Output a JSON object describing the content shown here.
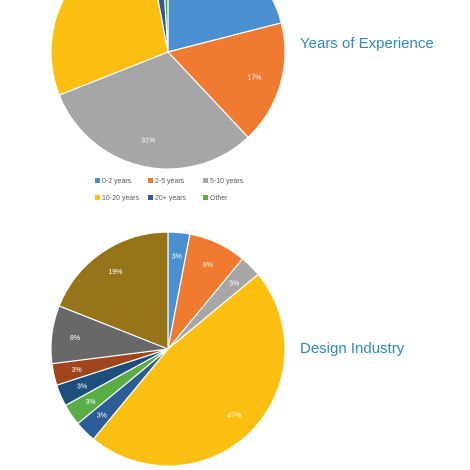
{
  "chart_data": [
    {
      "type": "pie",
      "title": "Years of Experience",
      "categories": [
        "0-2 years",
        "2-5 years",
        "5-10 years",
        "10-20 years",
        "20+ years",
        "Other"
      ],
      "values": [
        21,
        17,
        31,
        28,
        2,
        1
      ],
      "data_labels": [
        "",
        "17%",
        "31%",
        "",
        "",
        ""
      ],
      "colors": [
        "#4a90d0",
        "#f07a30",
        "#a6a6a6",
        "#fbbf12",
        "#2c5d96",
        "#5aac45"
      ],
      "legend": {
        "placement": "bottom",
        "rows": [
          [
            "0-2 years",
            "2-5 years",
            "5-10 years"
          ],
          [
            "10-20 years",
            "20+ years",
            "Other"
          ]
        ]
      }
    },
    {
      "type": "pie",
      "title": "Design Industry",
      "categories": [
        "",
        "",
        "",
        "",
        "",
        "",
        "",
        "",
        "",
        ""
      ],
      "values": [
        3,
        8,
        3,
        47,
        3,
        3,
        3,
        3,
        8,
        19
      ],
      "data_labels": [
        "3%",
        "8%",
        "3%",
        "47%",
        "3%",
        "3%",
        "3%",
        "3%",
        "8%",
        "19%"
      ],
      "colors": [
        "#4a90d0",
        "#f07a30",
        "#a6a6a6",
        "#fbbf12",
        "#2c5d96",
        "#5aac45",
        "#1d4f7c",
        "#a0451b",
        "#686868",
        "#96741a"
      ]
    }
  ]
}
